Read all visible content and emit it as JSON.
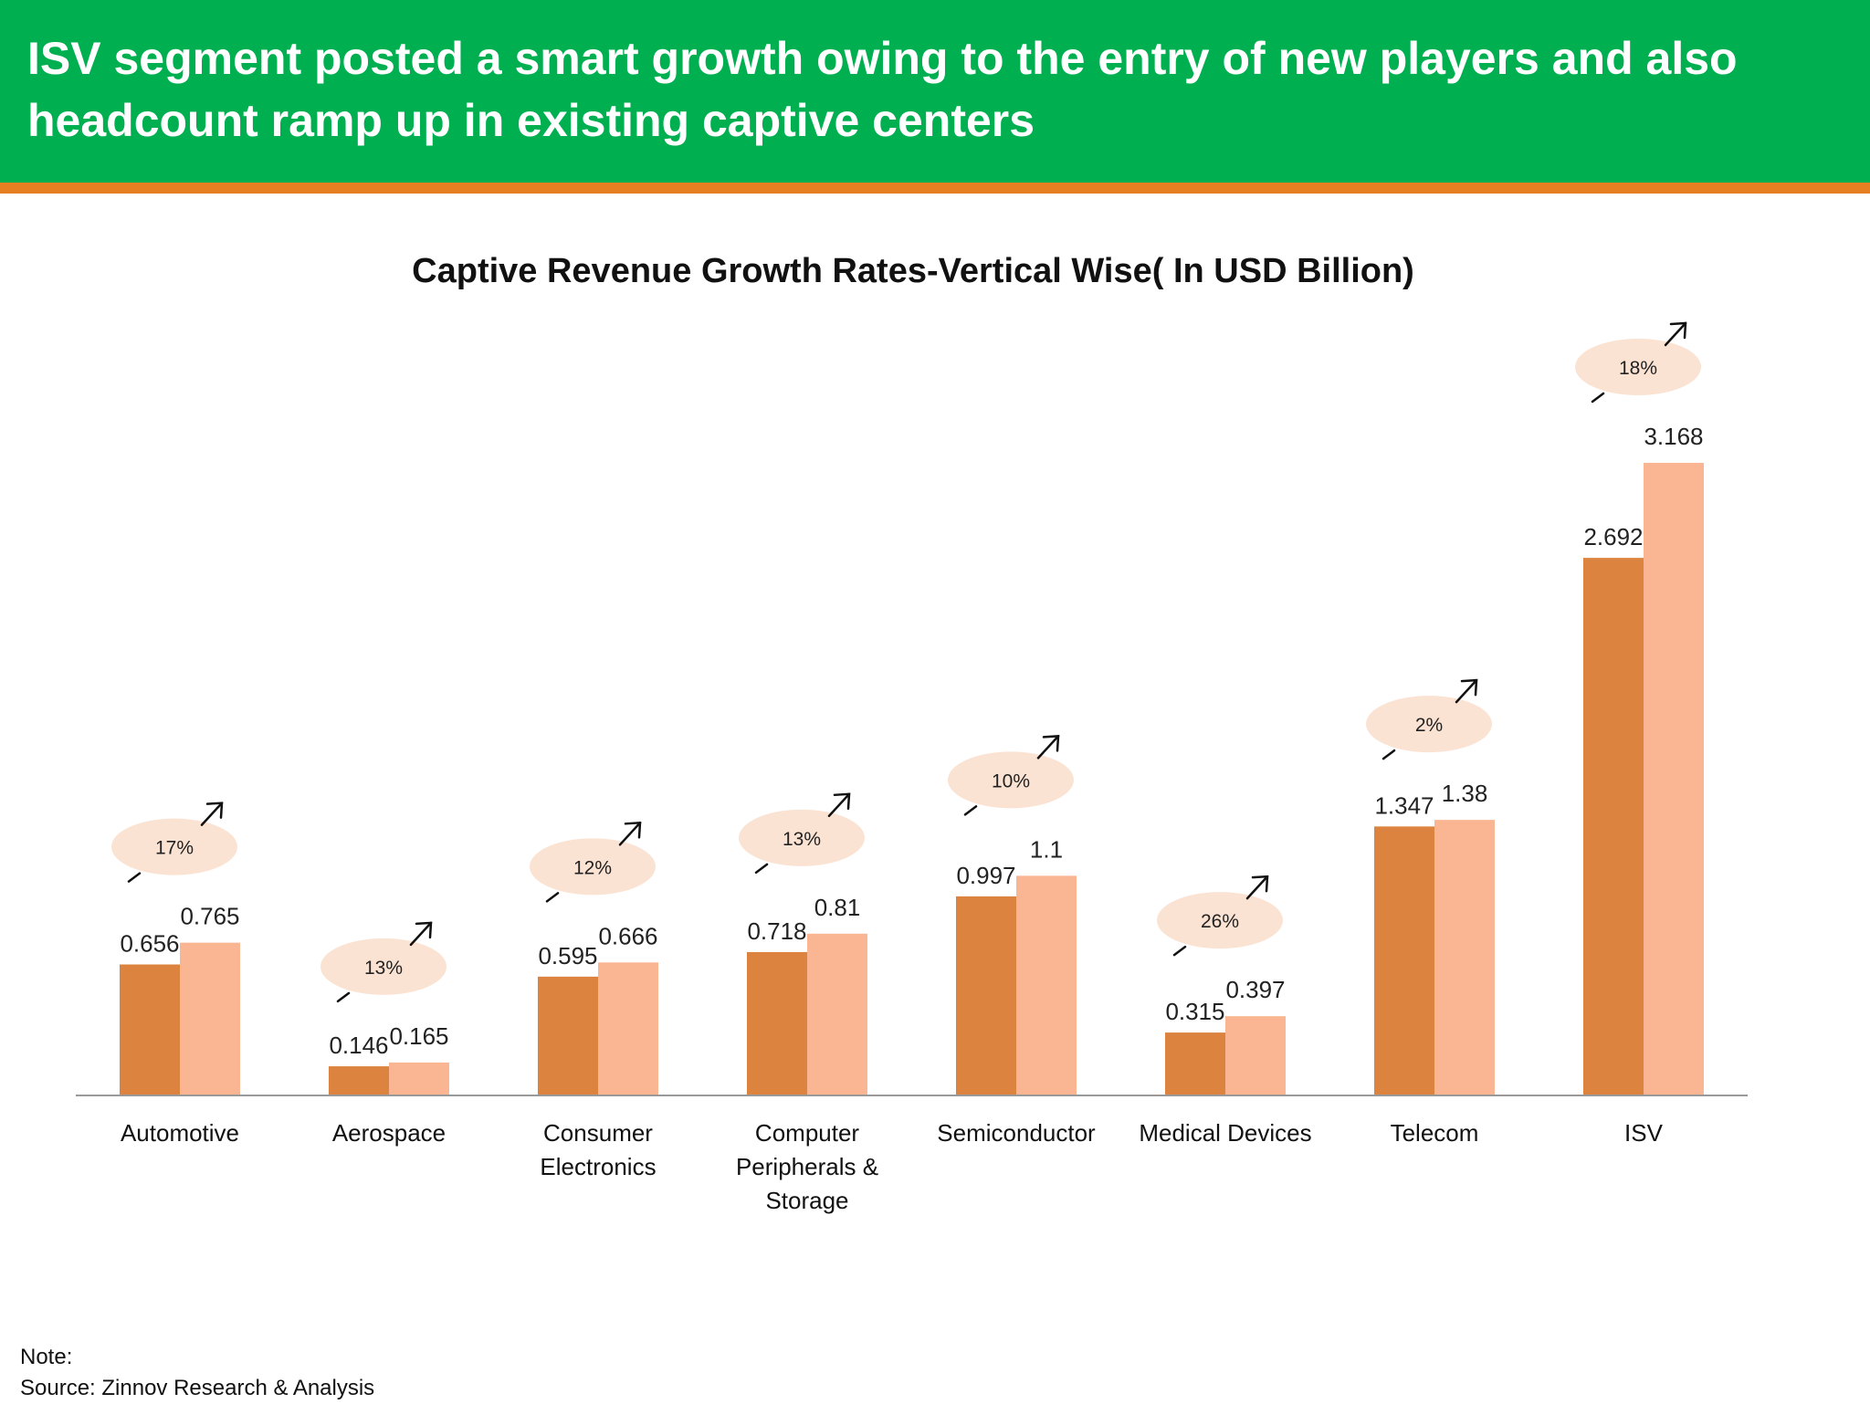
{
  "header": {
    "title": "ISV segment posted a smart growth owing to the entry of new players and also\nheadcount ramp up in existing captive centers"
  },
  "colors": {
    "header_bg": "#00b050",
    "header_rule": "#e67e22",
    "series_1": "#dc843f",
    "series_2": "#fab592",
    "bubble": "#fbe3d3"
  },
  "chart_data": {
    "type": "bar",
    "title": "Captive Revenue Growth Rates-Vertical Wise( In USD Billion)",
    "categories": [
      "Automotive",
      "Aerospace",
      "Consumer\nElectronics",
      "Computer\nPeripherals &\nStorage",
      "Semiconductor",
      "Medical Devices",
      "Telecom",
      "ISV"
    ],
    "series": [
      {
        "values": [
          0.656,
          0.146,
          0.595,
          0.718,
          0.997,
          0.315,
          1.347,
          2.692
        ]
      },
      {
        "values": [
          0.765,
          0.165,
          0.666,
          0.81,
          1.1,
          0.397,
          1.38,
          3.168
        ]
      }
    ],
    "value_labels": [
      [
        "0.656",
        "0.146",
        "0.595",
        "0.718",
        "0.997",
        "0.315",
        "1.347",
        "2.692"
      ],
      [
        "0.765",
        "0.165",
        "0.666",
        "0.81",
        "1.1",
        "0.397",
        "1.38",
        "3.168"
      ]
    ],
    "growth_rates": [
      "17%",
      "13%",
      "12%",
      "13%",
      "10%",
      "26%",
      "2%",
      "18%"
    ],
    "growth_icon": "up-right-arrow-icon",
    "ylim": [
      0,
      3.2
    ],
    "grid": false,
    "legend": "none"
  },
  "footer": {
    "note": "Note:",
    "source": "Source: Zinnov Research & Analysis"
  }
}
